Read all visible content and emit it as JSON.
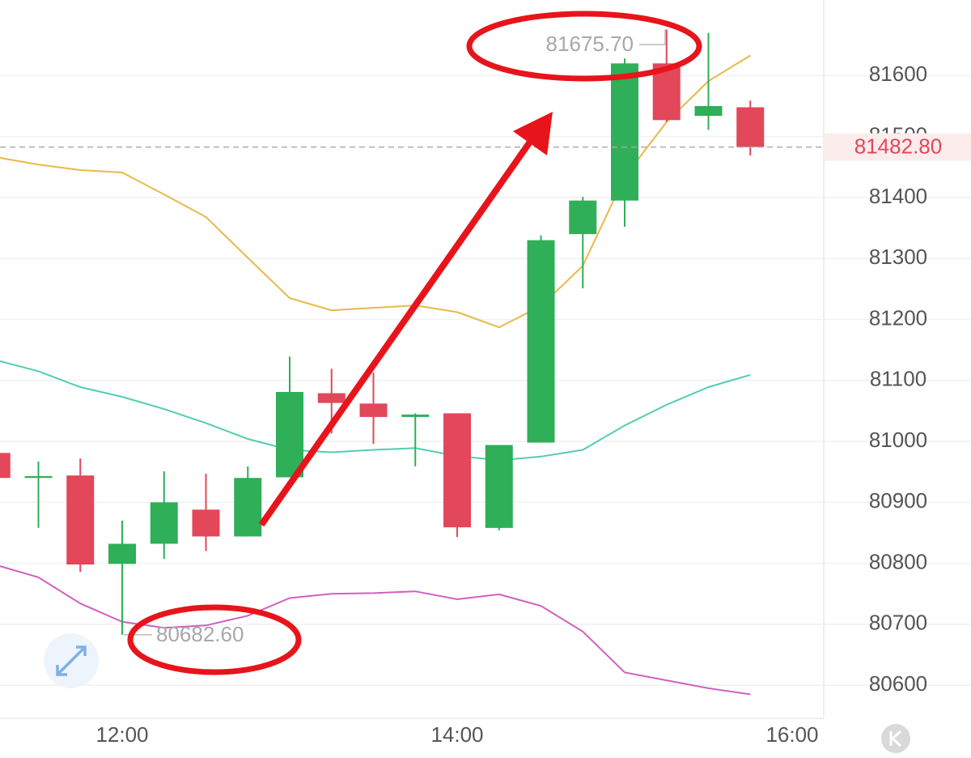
{
  "chart_data": {
    "type": "candlestick",
    "categories": [
      null,
      null,
      null,
      "12:00",
      null,
      null,
      null,
      null,
      null,
      null,
      null,
      "14:00",
      null,
      null,
      null,
      null,
      null,
      null,
      null,
      "16:00"
    ],
    "open": [
      80981,
      80940,
      80944,
      80799,
      80832,
      80888,
      80844,
      80941,
      81079,
      81062,
      81040,
      81046,
      80858,
      80998,
      81340,
      81395,
      81620,
      81534,
      81548,
      null
    ],
    "high": [
      80985,
      80967,
      80972,
      80870,
      80951,
      80947,
      80959,
      81139,
      81119,
      81113,
      81046,
      81046,
      80994,
      81338,
      81401,
      81628,
      81675.7,
      81670,
      81559,
      null
    ],
    "low": [
      80935,
      80858,
      80786,
      80682.6,
      80807,
      80820,
      80844,
      80941,
      81013,
      80996,
      80959,
      80843,
      80854,
      80998,
      81251,
      81352,
      81524,
      81511,
      81469,
      null
    ],
    "close": [
      80940,
      80943,
      80798,
      80832,
      80900,
      80844,
      80940,
      81081,
      81063,
      81040,
      81044,
      80859,
      80994,
      81330,
      81395,
      81620,
      81527,
      81550,
      81482.8,
      null
    ],
    "up_color": "#2eaf58",
    "down_color": "#e2475a",
    "lines": [
      {
        "color": "#e9b949",
        "values": [
          81466,
          81454,
          81445,
          81441,
          81405,
          81368,
          81301,
          81235,
          81215,
          81219,
          81223,
          81212,
          81187,
          81222,
          81288,
          81434,
          81524,
          81591,
          81633,
          null
        ]
      },
      {
        "color": "#52cdb1",
        "values": [
          81133,
          81115,
          81089,
          81073,
          81053,
          81030,
          81004,
          80986,
          80982,
          80986,
          80989,
          80976,
          80969,
          80975,
          80986,
          81026,
          81060,
          81089,
          81109,
          null
        ]
      },
      {
        "color": "#d25fbf",
        "values": [
          80797,
          80777,
          80734,
          80704,
          80694,
          80698,
          80714,
          80743,
          80750,
          80751,
          80754,
          80741,
          80749,
          80730,
          80688,
          80621,
          80608,
          80595,
          80585,
          null
        ]
      }
    ],
    "ylim": [
      80547,
      81724
    ],
    "yticks": [
      80600,
      80700,
      80800,
      80900,
      81000,
      81100,
      81200,
      81300,
      81400,
      81500,
      81600
    ],
    "grid": true,
    "last_price": {
      "value": 81482.8,
      "label": "81482.80"
    },
    "annotations": [
      {
        "value": 81675.7,
        "label": "81675.70"
      },
      {
        "value": 80682.6,
        "label": "80682.60"
      }
    ]
  }
}
